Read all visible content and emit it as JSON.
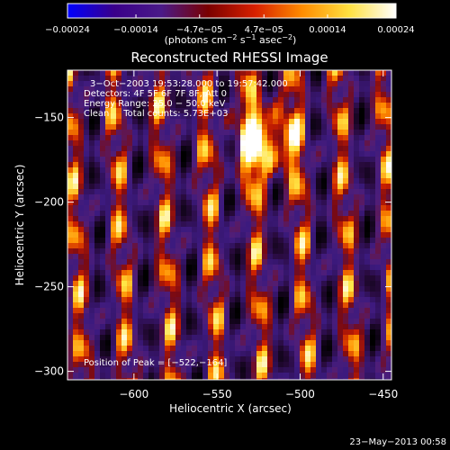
{
  "chart_data": {
    "type": "heatmap",
    "title": "Reconstructed RHESSI Image",
    "xlabel": "Heliocentric X (arcsec)",
    "ylabel": "Heliocentric Y (arcsec)",
    "xlim": [
      -640,
      -445
    ],
    "ylim": [
      -305,
      -122
    ],
    "x_ticks": [
      -600,
      -550,
      -500,
      -450
    ],
    "y_ticks": [
      -150,
      -200,
      -250,
      -300
    ],
    "x_tick_labels": [
      "−600",
      "−550",
      "−500",
      "−450"
    ],
    "y_tick_labels": [
      "−150",
      "−200",
      "−250",
      "−300"
    ],
    "colorbar": {
      "range": [
        -0.00024,
        0.00024
      ],
      "ticks": [
        -0.00024,
        -0.00014,
        -4.7e-05,
        4.7e-05,
        0.00014,
        0.00024
      ],
      "tick_labels": [
        "−0.00024",
        "−0.00014",
        "−4.7e−05",
        "4.7e−05",
        "0.00014",
        "0.00024"
      ],
      "label_main": "(photons cm",
      "label_exp1": "−2",
      "label_mid": " s",
      "label_exp2": "−1",
      "label_tail": " asec",
      "label_exp3": "−2",
      "label_close": ")",
      "colors": [
        "#0000ff",
        "#3a008a",
        "#4a1a88",
        "#7a0000",
        "#d82000",
        "#ff8c00",
        "#ffe040",
        "#ffffff"
      ]
    },
    "annotations": {
      "time_range": "3−Oct−2003 19:53:28.000 to 19:57:42.000",
      "detectors": "Detectors: 4F 5F 6F 7F 8F, Att 0",
      "energy_range": "Energy Range: 25.0 − 50.0 keV",
      "clean_total": "Clean     Total counts: 5.73E+03",
      "peak_position": "Position of Peak = [−522,−164]"
    },
    "peak": {
      "x": -522,
      "y": -164
    },
    "grid": false,
    "footer_timestamp": "23−May−2013 00:58"
  }
}
